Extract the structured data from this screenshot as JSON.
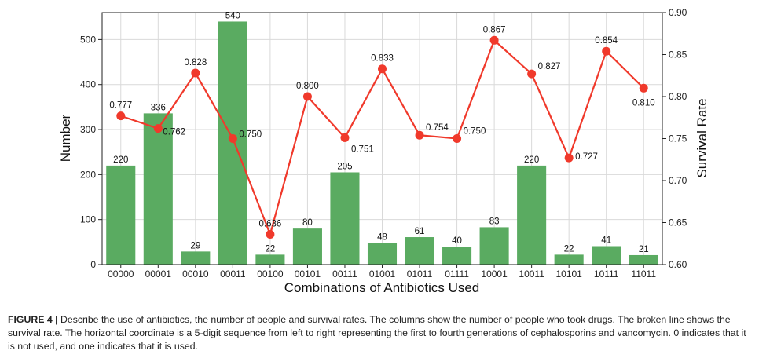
{
  "chart_data": {
    "type": "bar+line",
    "categories": [
      "00000",
      "00001",
      "00010",
      "00011",
      "00100",
      "00101",
      "00111",
      "01001",
      "01011",
      "01111",
      "10001",
      "10011",
      "10101",
      "10111",
      "11011"
    ],
    "series": [
      {
        "type": "bar",
        "axis": "left",
        "color": "#5aab61",
        "values": [
          220,
          336,
          29,
          540,
          22,
          80,
          205,
          48,
          61,
          40,
          83,
          220,
          22,
          41,
          21
        ],
        "labels": [
          "220",
          "336",
          "29",
          "540",
          "22",
          "80",
          "205",
          "48",
          "61",
          "40",
          "83",
          "220",
          "22",
          "41",
          "21"
        ]
      },
      {
        "type": "line",
        "axis": "right",
        "color": "#f0392b",
        "values": [
          0.777,
          0.762,
          0.828,
          0.75,
          0.636,
          0.8,
          0.751,
          0.833,
          0.754,
          0.75,
          0.867,
          0.827,
          0.727,
          0.854,
          0.81
        ],
        "labels": [
          "0.777",
          "0.762",
          "0.828",
          "0.750",
          "0.636",
          "0.800",
          "0.751",
          "0.833",
          "0.754",
          "0.750",
          "0.867",
          "0.827",
          "0.727",
          "0.854",
          "0.810"
        ]
      }
    ],
    "xlabel": "Combinations of Antibiotics Used",
    "ylabel": "Number",
    "y2label": "Survival Rate",
    "ylim": [
      0,
      560
    ],
    "y2lim": [
      0.6,
      0.9
    ],
    "yticks": [
      0,
      100,
      200,
      300,
      400,
      500
    ],
    "y2ticks": [
      "0.60",
      "0.65",
      "0.70",
      "0.75",
      "0.80",
      "0.85",
      "0.90"
    ],
    "grid": true
  },
  "caption": {
    "label": "FIGURE 4 |",
    "text": "Describe the use of antibiotics, the number of people and survival rates. The columns show the number of people who took drugs. The broken line shows the survival rate. The horizontal coordinate is a 5-digit sequence from left to right representing the first to fourth generations of cephalosporins and vancomycin. 0 indicates that it is not used, and one indicates that it is used."
  }
}
